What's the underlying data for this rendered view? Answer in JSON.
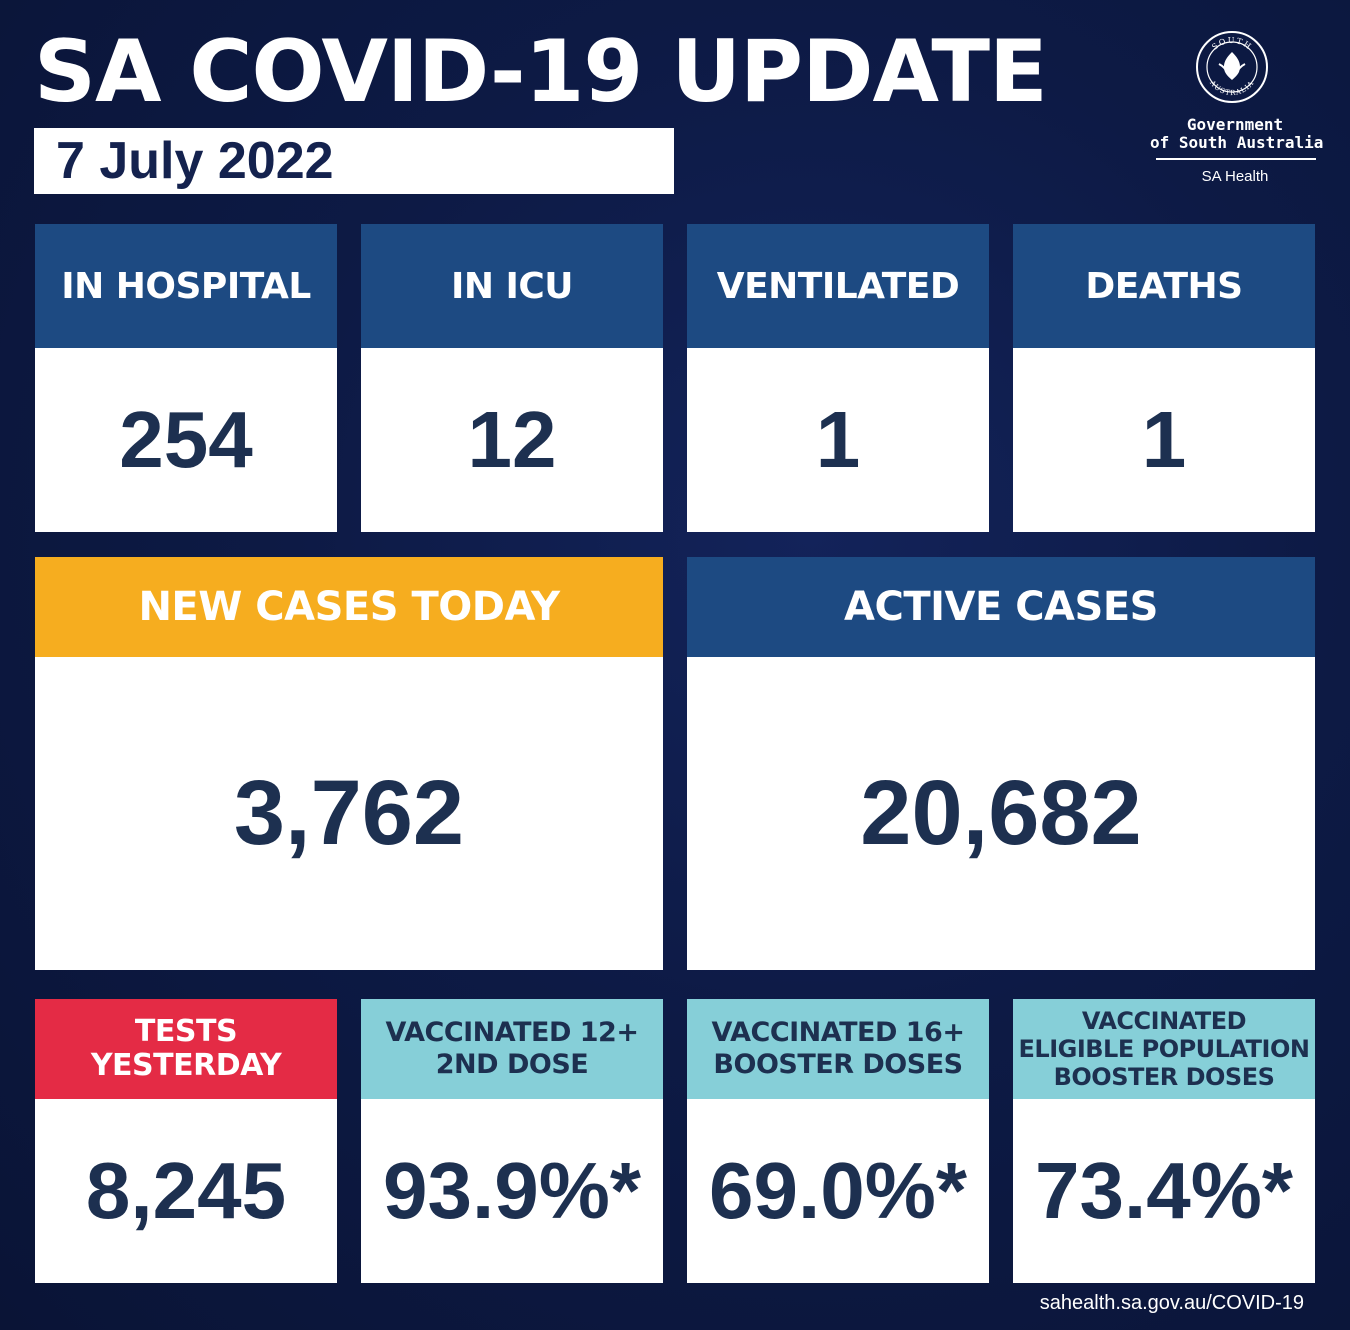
{
  "title": "SA COVID-19 UPDATE",
  "date": "7 July 2022",
  "logo": {
    "seal_top": "SOUTH",
    "seal_bottom": "AUSTRALIA",
    "line1": "Government",
    "line2": "of South Australia",
    "sub": "SA Health"
  },
  "stats_row1": [
    {
      "label": "IN HOSPITAL",
      "value": "254"
    },
    {
      "label": "IN ICU",
      "value": "12"
    },
    {
      "label": "VENTILATED",
      "value": "1"
    },
    {
      "label": "DEATHS",
      "value": "1"
    }
  ],
  "new_cases": {
    "label": "NEW CASES TODAY",
    "value": "3,762"
  },
  "active_cases": {
    "label": "ACTIVE CASES",
    "value": "20,682"
  },
  "tests": {
    "label_line1": "TESTS",
    "label_line2": "YESTERDAY",
    "value": "8,245"
  },
  "vaccinated": [
    {
      "label_line1": "VACCINATED 12+",
      "label_line2": "2ND DOSE",
      "label_line3": "",
      "value": "93.9%*"
    },
    {
      "label_line1": "VACCINATED 16+",
      "label_line2": "BOOSTER DOSES",
      "label_line3": "",
      "value": "69.0%*"
    },
    {
      "label_line1": "VACCINATED",
      "label_line2": "ELIGIBLE POPULATION",
      "label_line3": "BOOSTER DOSES",
      "value": "73.4%*"
    }
  ],
  "footer": "sahealth.sa.gov.au/COVID-19",
  "colors": {
    "background": "#0d1a45",
    "header_blue": "#1d4a82",
    "new_cases_orange": "#f6ad1f",
    "tests_red": "#e42b45",
    "vaccinated_cyan": "#86cfd8",
    "number_text": "#1d3050"
  }
}
